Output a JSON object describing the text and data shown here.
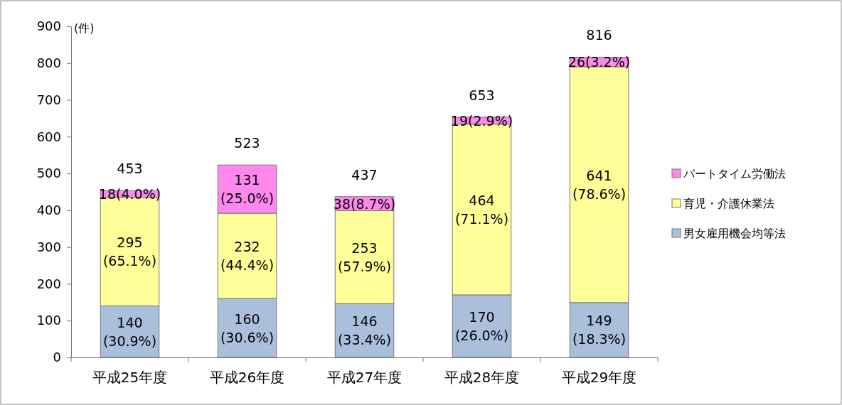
{
  "chart_data": {
    "type": "bar",
    "stacked": true,
    "ylabel": "(件)",
    "categories": [
      "平成25年度",
      "平成26年度",
      "平成27年度",
      "平成28年度",
      "平成29年度"
    ],
    "ylim": [
      0,
      900
    ],
    "yticks": [
      0,
      100,
      200,
      300,
      400,
      500,
      600,
      700,
      800,
      900
    ],
    "grid": false,
    "legend": "right",
    "series": [
      {
        "name": "男女雇用機会均等法",
        "color": "#a9bfdc",
        "values": [
          140,
          160,
          146,
          170,
          149
        ],
        "value_labels": [
          "140\n(30.9%)",
          "160\n(30.6%)",
          "146\n(33.4%)",
          "170\n(26.0%)",
          "149\n(18.3%)"
        ]
      },
      {
        "name": "育児・介護休業法",
        "color": "#ffff99",
        "values": [
          295,
          232,
          253,
          464,
          641
        ],
        "value_labels": [
          "295\n(65.1%)",
          "232\n(44.4%)",
          "253\n(57.9%)",
          "464\n(71.1%)",
          "641\n(78.6%)"
        ]
      },
      {
        "name": "パートタイム労働法",
        "color": "#ff88ee",
        "values": [
          18,
          131,
          38,
          19,
          26
        ],
        "value_labels": [
          "18(4.0%)",
          "131\n(25.0%)",
          "38(8.7%)",
          "19(2.9%)",
          "26(3.2%)"
        ]
      }
    ],
    "totals": [
      "453",
      "523",
      "437",
      "653",
      "816"
    ]
  }
}
